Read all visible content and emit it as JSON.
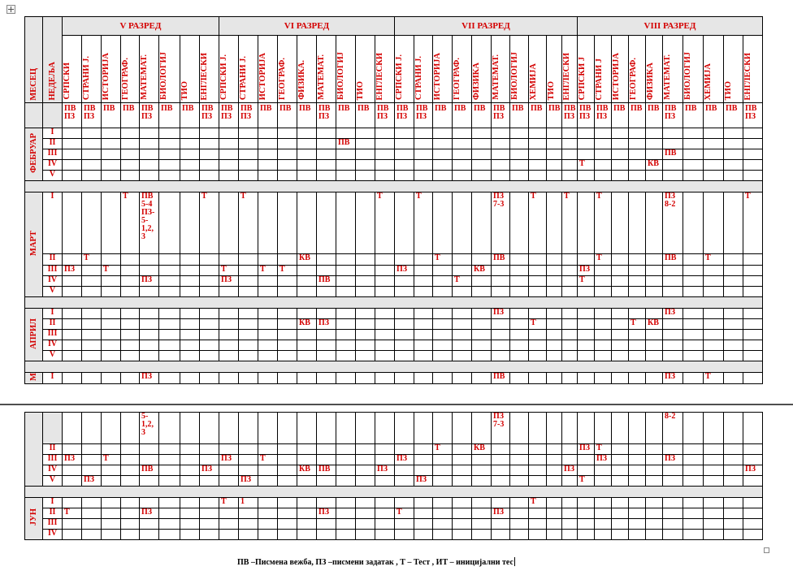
{
  "legend": "ПВ –Писмена вежба, ПЗ –писмени задатак  , Т – Тест , ИТ – иницијални тес",
  "header": {
    "month_label": "МЕСЕЦ",
    "week_label": "НЕДЕЉА",
    "grades": [
      "V РАЗРЕД",
      "VI РАЗРЕД",
      "VII РАЗРЕД",
      "VIII РАЗРЕД"
    ]
  },
  "grade_subjects": [
    [
      "СРПСКИ",
      "СТРАНИ Ј.",
      "ИСТОРИЈА",
      "ГЕОГРАФ.",
      "МАТЕМАТ.",
      "БИОЛОГИЈ",
      "ТИО",
      "ЕНГЛЕСКИ"
    ],
    [
      "СРПСКИ Ј.",
      "СТРАНИ Ј.",
      "ИСТОРИЈА",
      "ГЕОГРАФ.",
      "ФИЗИКА.",
      "МАТЕМАТ.",
      "БИОЛОГИЈ",
      "ТИО",
      "ЕНГЛЕСКИ"
    ],
    [
      "СРПСКИ Ј.",
      "СТРАНИ Ј.",
      "ИСТОРИЈА",
      "ГЕОГРАФ.",
      "ФИЗИКА",
      "МАТЕМАТ.",
      "БИОЛОГИЈ",
      "ХЕМИЈА",
      "ТИО",
      "ЕНГЛЕСКИ"
    ],
    [
      "СРПСКИ J",
      "СТРАНИ J",
      "ИСТОРИЈА",
      "ГЕОГРАФ.",
      "ФИЗИКА",
      "МАТЕМАТ.",
      "БИОЛОГИЈ",
      "ХЕМИЈА",
      "ТИО",
      "ЕНГЛЕСКИ"
    ]
  ],
  "type_row": [
    [
      "ПВ ПЗ",
      "ПВ ПЗ",
      "ПВ",
      "ПВ",
      "ПВ ПЗ",
      "ПВ",
      "ПВ",
      "ПВ ПЗ"
    ],
    [
      "ПВ ПЗ",
      "ПВ ПЗ",
      "ПВ",
      "ПВ",
      "ПВ",
      "ПВ ПЗ",
      "ПВ",
      "ПВ",
      "ПВ ПЗ"
    ],
    [
      "ПВ ПЗ",
      "ПВ ПЗ",
      "ПВ",
      "ПВ",
      "ПВ",
      "ПВ ПЗ",
      "ПВ",
      "ПВ",
      "ПВ",
      "ПВ ПЗ"
    ],
    [
      "ПВ ПЗ",
      "ПВ ПЗ",
      "ПВ",
      "ПВ",
      "ПВ",
      "ПВ ПЗ",
      "ПВ",
      "ПВ",
      "ПВ",
      "ПВ ПЗ"
    ]
  ],
  "months_top": [
    {
      "name": "ФЕБРУАР",
      "rows": [
        {
          "week": "I",
          "cells": []
        },
        {
          "week": "II",
          "cells": [
            [
              14,
              "ПВ"
            ]
          ]
        },
        {
          "week": "III",
          "cells": [
            [
              32,
              "ПВ"
            ]
          ]
        },
        {
          "week": "IV",
          "cells": [
            [
              27,
              "Т"
            ],
            [
              31,
              "КВ"
            ]
          ]
        },
        {
          "week": "V",
          "cells": []
        }
      ]
    },
    {
      "name": "МАРТ",
      "rows": [
        {
          "week": "I",
          "cells": [
            [
              3,
              "Т"
            ],
            [
              4,
              "ПВ 5-4 ПЗ- 5- 1,2, 3"
            ],
            [
              7,
              "Т"
            ],
            [
              9,
              "Т"
            ],
            [
              16,
              "Т"
            ],
            [
              18,
              "Т"
            ],
            [
              22,
              "ПЗ 7-3"
            ],
            [
              24,
              "Т"
            ],
            [
              26,
              "Т"
            ],
            [
              28,
              "Т"
            ],
            [
              32,
              "ПЗ 8-2"
            ],
            [
              36,
              "Т"
            ]
          ]
        },
        {
          "week": "II",
          "cells": [
            [
              1,
              "Т"
            ],
            [
              12,
              "КВ"
            ],
            [
              19,
              "Т"
            ],
            [
              22,
              "ПВ"
            ],
            [
              28,
              "Т"
            ],
            [
              32,
              "ПВ"
            ],
            [
              34,
              "Т"
            ]
          ]
        },
        {
          "week": "III",
          "cells": [
            [
              0,
              "ПЗ"
            ],
            [
              2,
              "Т"
            ],
            [
              8,
              "Т"
            ],
            [
              10,
              "Т"
            ],
            [
              11,
              "Т"
            ],
            [
              17,
              "ПЗ"
            ],
            [
              21,
              "КВ"
            ],
            [
              27,
              "ПЗ"
            ]
          ]
        },
        {
          "week": "IV",
          "cells": [
            [
              4,
              "ПЗ"
            ],
            [
              8,
              "ПЗ"
            ],
            [
              13,
              "ПВ"
            ],
            [
              20,
              "Т"
            ],
            [
              27,
              "Т"
            ]
          ]
        },
        {
          "week": "V",
          "cells": []
        }
      ]
    },
    {
      "name": "АПРИЛ",
      "rows": [
        {
          "week": "I",
          "cells": [
            [
              22,
              "ПЗ"
            ],
            [
              32,
              "ПЗ"
            ]
          ]
        },
        {
          "week": "II",
          "cells": [
            [
              12,
              "КВ"
            ],
            [
              13,
              "ПЗ"
            ],
            [
              24,
              "Т"
            ],
            [
              30,
              "Т"
            ],
            [
              31,
              "КВ"
            ]
          ]
        },
        {
          "week": "III",
          "cells": []
        },
        {
          "week": "IV",
          "cells": []
        },
        {
          "week": "V",
          "cells": []
        }
      ]
    },
    {
      "name": "М",
      "rows": [
        {
          "week": "I",
          "cells": [
            [
              4,
              "ПЗ"
            ],
            [
              22,
              "ПВ"
            ],
            [
              32,
              "ПЗ"
            ],
            [
              34,
              "Т"
            ]
          ]
        }
      ]
    }
  ],
  "months_bottom": [
    {
      "name": "",
      "rows": [
        {
          "week": "",
          "cells": [
            [
              4,
              "5- 1,2, 3"
            ],
            [
              22,
              "ПЗ 7-3"
            ],
            [
              32,
              "8-2"
            ]
          ]
        },
        {
          "week": "II",
          "cells": [
            [
              19,
              "Т"
            ],
            [
              21,
              "КВ"
            ],
            [
              27,
              "ПЗ"
            ],
            [
              28,
              "Т"
            ]
          ]
        },
        {
          "week": "III",
          "cells": [
            [
              0,
              "ПЗ"
            ],
            [
              2,
              "Т"
            ],
            [
              8,
              "ПЗ"
            ],
            [
              10,
              "Т"
            ],
            [
              17,
              "ПЗ"
            ],
            [
              28,
              "ПЗ"
            ],
            [
              32,
              "ПЗ"
            ]
          ]
        },
        {
          "week": "IV",
          "cells": [
            [
              4,
              "ПВ"
            ],
            [
              7,
              "ПЗ"
            ],
            [
              12,
              "КВ"
            ],
            [
              13,
              "ПВ"
            ],
            [
              16,
              "ПЗ"
            ],
            [
              26,
              "ПЗ"
            ],
            [
              36,
              "ПЗ"
            ]
          ]
        },
        {
          "week": "V",
          "cells": [
            [
              1,
              "ПЗ"
            ],
            [
              9,
              "ПЗ"
            ],
            [
              18,
              "ПЗ"
            ],
            [
              27,
              "Т"
            ]
          ]
        }
      ]
    },
    {
      "name": "ЈУН",
      "rows": [
        {
          "week": "I",
          "cells": [
            [
              8,
              "Т"
            ],
            [
              9,
              "1"
            ],
            [
              24,
              "Т"
            ]
          ]
        },
        {
          "week": "II",
          "cells": [
            [
              0,
              "Т"
            ],
            [
              4,
              "ПЗ"
            ],
            [
              13,
              "ПЗ"
            ],
            [
              17,
              "Т"
            ],
            [
              22,
              "ПЗ"
            ]
          ]
        },
        {
          "week": "III",
          "cells": []
        },
        {
          "week": "IV",
          "cells": []
        }
      ]
    }
  ]
}
